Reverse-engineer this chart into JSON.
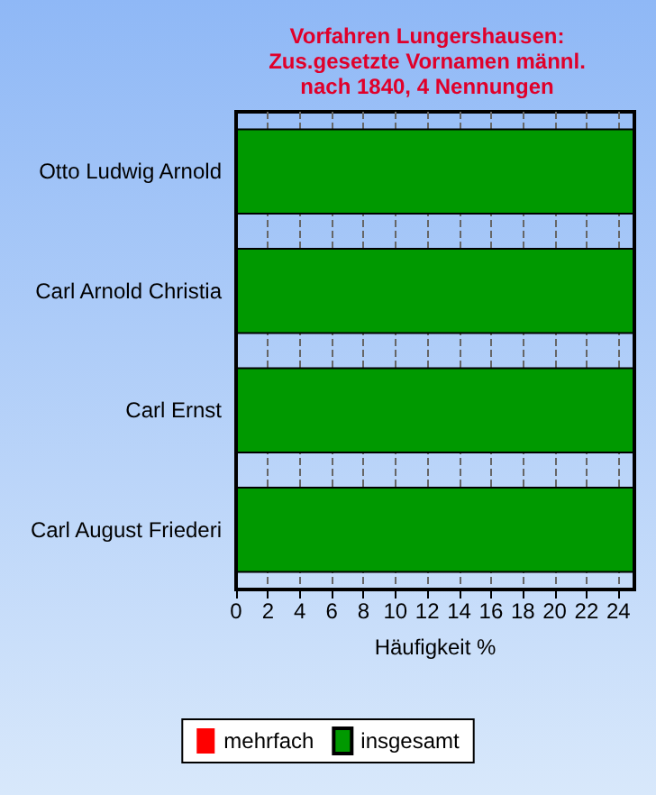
{
  "chart_data": {
    "type": "bar",
    "orientation": "horizontal",
    "title": "Vorfahren Lungershausen:\nZus.gesetzte Vornamen männl.\nnach 1840, 4 Nennungen",
    "xlabel": "Häufigkeit %",
    "categories": [
      "Otto Ludwig Arnold",
      "Carl Arnold Christia",
      "Carl Ernst",
      "Carl August Friederi"
    ],
    "series": [
      {
        "name": "mehrfach",
        "color": "#ff0000",
        "values": [
          0,
          0,
          0,
          0
        ]
      },
      {
        "name": "insgesamt",
        "color": "#009900",
        "values": [
          25,
          25,
          25,
          25
        ]
      }
    ],
    "xlim": [
      0,
      25
    ],
    "xticks": [
      0,
      2,
      4,
      6,
      8,
      10,
      12,
      14,
      16,
      18,
      20,
      22,
      24
    ],
    "grid": "x",
    "legend": "bottom"
  }
}
